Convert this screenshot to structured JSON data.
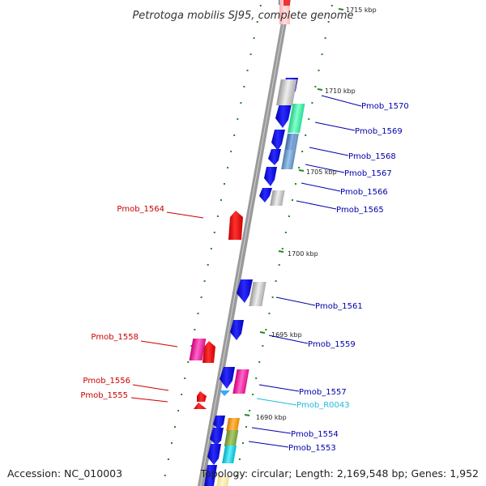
{
  "title": "Petrotoga mobilis SJ95, complete genome",
  "footer": {
    "accession": "Accession: NC_010003",
    "topology": "Topology: circular; Length: 2,169,548 bp; Genes: 1,952"
  },
  "kbp_labels": [
    "1715 kbp",
    "1710 kbp",
    "1705 kbp",
    "1700 kbp",
    "1695 kbp",
    "1690 kbp"
  ],
  "labeled_genes": [
    {
      "name": "Pmob_1570",
      "color": "#0000aa"
    },
    {
      "name": "Pmob_1569",
      "color": "#0000aa"
    },
    {
      "name": "Pmob_1568",
      "color": "#0000aa"
    },
    {
      "name": "Pmob_1567",
      "color": "#0000aa"
    },
    {
      "name": "Pmob_1566",
      "color": "#0000aa"
    },
    {
      "name": "Pmob_1565",
      "color": "#0000aa"
    },
    {
      "name": "Pmob_1564",
      "color": "#cc0000"
    },
    {
      "name": "Pmob_1561",
      "color": "#0000aa"
    },
    {
      "name": "Pmob_1559",
      "color": "#0000aa"
    },
    {
      "name": "Pmob_1558",
      "color": "#cc0000"
    },
    {
      "name": "Pmob_1557",
      "color": "#0000aa"
    },
    {
      "name": "Pmob_1556",
      "color": "#cc0000"
    },
    {
      "name": "Pmob_R0043",
      "color": "#22bbdd"
    },
    {
      "name": "Pmob_1555",
      "color": "#cc0000"
    },
    {
      "name": "Pmob_1554",
      "color": "#0000aa"
    },
    {
      "name": "Pmob_1553",
      "color": "#0000aa"
    }
  ],
  "colors": {
    "forward_gene": "#0000ee",
    "reverse_gene": "#ee0000",
    "rna_gene": "#33aaff",
    "backbone": "#999999",
    "tick_mark": "#228822"
  }
}
